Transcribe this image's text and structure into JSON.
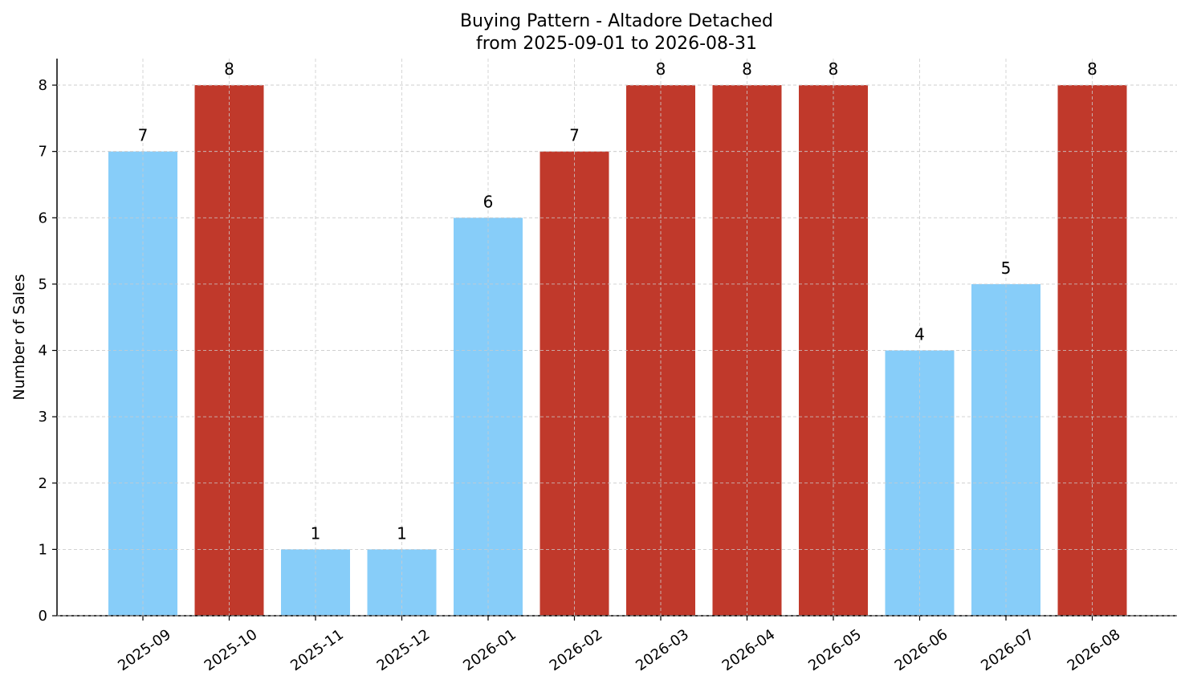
{
  "chart_data": {
    "type": "bar",
    "title": "Buying Pattern - Altadore Detached",
    "subtitle": "from 2025-09-01 to 2026-08-31",
    "xlabel": "",
    "ylabel": "Number of Sales",
    "ylim": [
      0,
      8.4
    ],
    "yticks": [
      0,
      1,
      2,
      3,
      4,
      5,
      6,
      7,
      8
    ],
    "grid": true,
    "categories": [
      "2025-09",
      "2025-10",
      "2025-11",
      "2025-12",
      "2026-01",
      "2026-02",
      "2026-03",
      "2026-04",
      "2026-05",
      "2026-06",
      "2026-07",
      "2026-08"
    ],
    "values": [
      7,
      8,
      1,
      1,
      6,
      7,
      8,
      8,
      8,
      4,
      5,
      8
    ],
    "bar_colors": [
      "#87cdf9",
      "#c0392b",
      "#87cdf9",
      "#87cdf9",
      "#87cdf9",
      "#c0392b",
      "#c0392b",
      "#c0392b",
      "#c0392b",
      "#87cdf9",
      "#87cdf9",
      "#c0392b"
    ],
    "data_labels": [
      "7",
      "8",
      "1",
      "1",
      "6",
      "7",
      "8",
      "8",
      "8",
      "4",
      "5",
      "8"
    ]
  }
}
